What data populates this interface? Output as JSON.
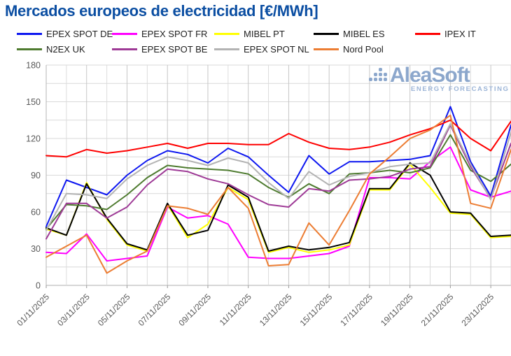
{
  "title": "Mercados europeos de electricidad [€/MWh]",
  "watermark": {
    "brand": "AleaSoft",
    "tagline": "ENERGY FORECASTING"
  },
  "chart_data": {
    "type": "line",
    "x": [
      "01/11/2025",
      "02/11/2025",
      "03/11/2025",
      "04/11/2025",
      "05/11/2025",
      "06/11/2025",
      "07/11/2025",
      "08/11/2025",
      "09/11/2025",
      "10/11/2025",
      "11/11/2025",
      "12/11/2025",
      "13/11/2025",
      "14/11/2025",
      "15/11/2025",
      "16/11/2025",
      "17/11/2025",
      "18/11/2025",
      "19/11/2025",
      "20/11/2025",
      "21/11/2025",
      "22/11/2025",
      "23/11/2025",
      "24/11/2025"
    ],
    "x_tick_every": 2,
    "ylim": [
      0,
      180
    ],
    "y_ticks": [
      0,
      30,
      60,
      90,
      120,
      150,
      180
    ],
    "y_minor_step": 15,
    "grid": true,
    "legend_position": "top",
    "series": [
      {
        "name": "EPEX SPOT DE",
        "color": "#0d17f0",
        "values": [
          48,
          86,
          80,
          74,
          90,
          102,
          110,
          107,
          100,
          112,
          105,
          90,
          76,
          106,
          91,
          101,
          101,
          102,
          103,
          106,
          146,
          101,
          73,
          131
        ]
      },
      {
        "name": "EPEX SPOT FR",
        "color": "#ff00fe",
        "values": [
          27,
          26,
          42,
          20,
          22,
          24,
          64,
          55,
          57,
          50,
          23,
          22,
          22,
          24,
          26,
          32,
          88,
          88,
          87,
          101,
          113,
          78,
          72,
          77
        ]
      },
      {
        "name": "MIBEL PT",
        "color": "#ffff00",
        "values": [
          46,
          41,
          84,
          54,
          33,
          28,
          66,
          39,
          50,
          80,
          70,
          27,
          31,
          27,
          29,
          33,
          78,
          78,
          99,
          80,
          59,
          58,
          39,
          40
        ]
      },
      {
        "name": "MIBEL ES",
        "color": "#000000",
        "values": [
          47,
          41,
          83,
          55,
          34,
          29,
          67,
          41,
          45,
          82,
          72,
          28,
          32,
          29,
          31,
          35,
          79,
          79,
          100,
          90,
          60,
          59,
          40,
          41
        ]
      },
      {
        "name": "IPEX IT",
        "color": "#fe0000",
        "values": [
          106,
          105,
          111,
          108,
          110,
          113,
          116,
          112,
          116,
          116,
          115,
          115,
          124,
          117,
          112,
          111,
          113,
          117,
          123,
          128,
          135,
          120,
          110,
          134
        ]
      },
      {
        "name": "N2EX UK",
        "color": "#4e7b2f",
        "values": [
          46,
          66,
          65,
          62,
          74,
          88,
          98,
          96,
          95,
          94,
          91,
          80,
          72,
          83,
          75,
          91,
          92,
          94,
          92,
          96,
          123,
          94,
          85,
          99
        ]
      },
      {
        "name": "EPEX SPOT BE",
        "color": "#9e3a96",
        "values": [
          38,
          67,
          67,
          55,
          64,
          82,
          95,
          93,
          87,
          83,
          74,
          66,
          64,
          79,
          77,
          86,
          87,
          89,
          95,
          97,
          131,
          97,
          71,
          116
        ]
      },
      {
        "name": "EPEX SPOT NL",
        "color": "#b3b3b3",
        "values": [
          45,
          75,
          74,
          71,
          87,
          98,
          105,
          102,
          98,
          104,
          100,
          84,
          71,
          93,
          82,
          89,
          92,
          97,
          99,
          100,
          132,
          99,
          70,
          125
        ]
      },
      {
        "name": "Nord Pool",
        "color": "#ec7d33",
        "values": [
          23,
          32,
          41,
          10,
          20,
          28,
          65,
          63,
          58,
          80,
          63,
          16,
          17,
          51,
          33,
          61,
          91,
          105,
          120,
          127,
          139,
          67,
          63,
          111
        ]
      }
    ]
  }
}
